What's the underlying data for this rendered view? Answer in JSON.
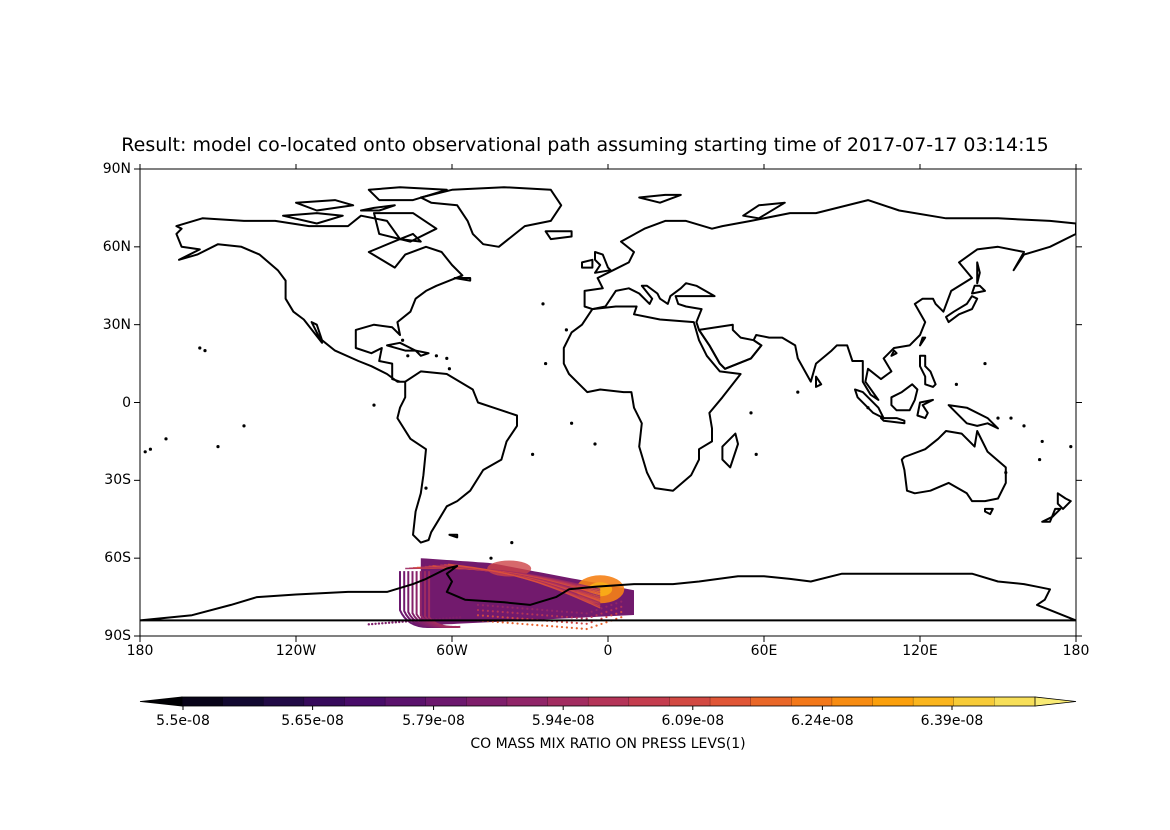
{
  "title": "Result: model co-located onto observational path assuming starting time of 2017-07-17 03:14:15",
  "map": {
    "projection": "PlateCarree",
    "lon_range": [
      -180,
      180
    ],
    "lat_range": [
      -90,
      90
    ],
    "x_ticks": [
      {
        "value": -180,
        "label": "180"
      },
      {
        "value": -120,
        "label": "120W"
      },
      {
        "value": -60,
        "label": "60W"
      },
      {
        "value": 0,
        "label": "0"
      },
      {
        "value": 60,
        "label": "60E"
      },
      {
        "value": 120,
        "label": "120E"
      },
      {
        "value": 180,
        "label": "180"
      }
    ],
    "y_ticks": [
      {
        "value": 90,
        "label": "90N"
      },
      {
        "value": 60,
        "label": "60N"
      },
      {
        "value": 30,
        "label": "30N"
      },
      {
        "value": 0,
        "label": "0"
      },
      {
        "value": -30,
        "label": "30S"
      },
      {
        "value": -60,
        "label": "60S"
      },
      {
        "value": -90,
        "label": "90S"
      }
    ],
    "coastline_color": "#000000",
    "colormap": "inferno",
    "data_region": {
      "lon_range": [
        -80,
        10
      ],
      "lat_range": [
        -88,
        -60
      ]
    }
  },
  "colorbar": {
    "label": "CO MASS MIX RATIO ON PRESS LEVS(1)",
    "range": [
      5.5e-08,
      6.6e-08
    ],
    "segments": 21,
    "ticks": [
      {
        "value": 5.5e-08,
        "label": "5.5e-08"
      },
      {
        "value": 5.65e-08,
        "label": "5.65e-08"
      },
      {
        "value": 5.79e-08,
        "label": "5.79e-08"
      },
      {
        "value": 5.94e-08,
        "label": "5.94e-08"
      },
      {
        "value": 6.09e-08,
        "label": "6.09e-08"
      },
      {
        "value": 6.24e-08,
        "label": "6.24e-08"
      },
      {
        "value": 6.39e-08,
        "label": "6.39e-08"
      }
    ],
    "extend": "both"
  }
}
